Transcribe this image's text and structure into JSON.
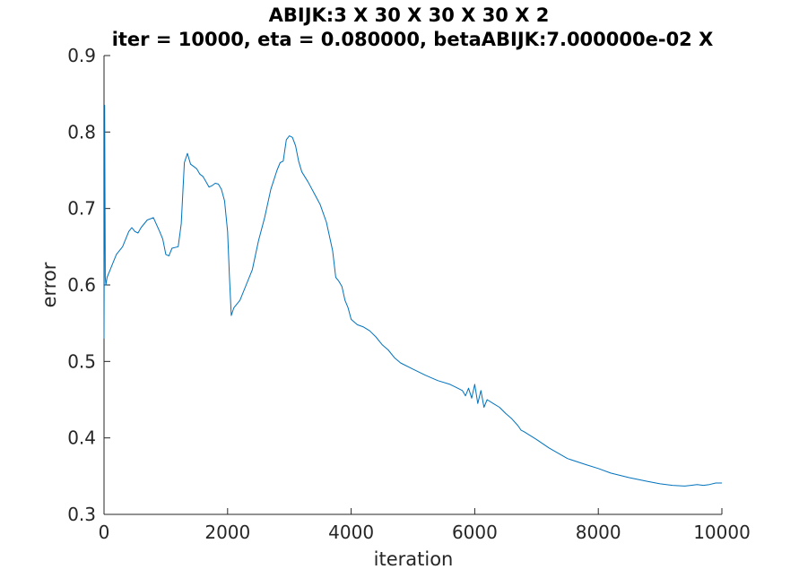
{
  "chart_data": {
    "type": "line",
    "title": "ABIJK:3 X 30 X 30 X 30 X 2",
    "subtitle": "iter = 10000, eta = 0.080000, betaABIJK:7.000000e-02 X",
    "xlabel": "iteration",
    "ylabel": "error",
    "xlim": [
      0,
      10000
    ],
    "ylim": [
      0.3,
      0.9
    ],
    "xticks": [
      0,
      2000,
      4000,
      6000,
      8000,
      10000
    ],
    "xtick_labels": [
      "0",
      "2000",
      "4000",
      "6000",
      "8000",
      "10000"
    ],
    "yticks": [
      0.3,
      0.4,
      0.5,
      0.6,
      0.7,
      0.8,
      0.9
    ],
    "ytick_labels": [
      "0.3",
      "0.4",
      "0.5",
      "0.6",
      "0.7",
      "0.8",
      "0.9"
    ],
    "grid": false,
    "series_color": "#0072bd",
    "x": [
      0,
      10,
      20,
      30,
      50,
      100,
      200,
      300,
      400,
      450,
      500,
      550,
      600,
      700,
      800,
      900,
      950,
      1000,
      1050,
      1100,
      1200,
      1250,
      1300,
      1350,
      1400,
      1450,
      1500,
      1550,
      1600,
      1650,
      1700,
      1750,
      1800,
      1850,
      1900,
      1950,
      2000,
      2030,
      2060,
      2100,
      2200,
      2300,
      2400,
      2500,
      2600,
      2700,
      2800,
      2850,
      2900,
      2950,
      3000,
      3050,
      3100,
      3150,
      3200,
      3300,
      3400,
      3500,
      3600,
      3700,
      3750,
      3800,
      3850,
      3900,
      3950,
      4000,
      4100,
      4200,
      4300,
      4400,
      4500,
      4600,
      4700,
      4800,
      5000,
      5200,
      5400,
      5600,
      5700,
      5800,
      5850,
      5900,
      5950,
      6000,
      6050,
      6100,
      6150,
      6200,
      6300,
      6400,
      6500,
      6600,
      6700,
      6750,
      6800,
      7000,
      7200,
      7500,
      7800,
      8000,
      8200,
      8500,
      8800,
      9000,
      9200,
      9400,
      9500,
      9600,
      9700,
      9800,
      9900,
      10000
    ],
    "y": [
      0.53,
      0.835,
      0.61,
      0.6,
      0.61,
      0.62,
      0.64,
      0.65,
      0.67,
      0.675,
      0.67,
      0.668,
      0.675,
      0.685,
      0.688,
      0.67,
      0.66,
      0.64,
      0.638,
      0.648,
      0.65,
      0.68,
      0.76,
      0.772,
      0.758,
      0.755,
      0.752,
      0.745,
      0.742,
      0.735,
      0.728,
      0.73,
      0.733,
      0.732,
      0.725,
      0.71,
      0.67,
      0.61,
      0.56,
      0.57,
      0.58,
      0.6,
      0.62,
      0.658,
      0.688,
      0.725,
      0.75,
      0.76,
      0.762,
      0.79,
      0.795,
      0.793,
      0.782,
      0.762,
      0.748,
      0.735,
      0.72,
      0.705,
      0.682,
      0.645,
      0.61,
      0.605,
      0.598,
      0.58,
      0.57,
      0.555,
      0.548,
      0.545,
      0.54,
      0.532,
      0.522,
      0.515,
      0.505,
      0.498,
      0.49,
      0.482,
      0.475,
      0.47,
      0.466,
      0.462,
      0.455,
      0.465,
      0.452,
      0.47,
      0.445,
      0.462,
      0.44,
      0.45,
      0.445,
      0.44,
      0.432,
      0.425,
      0.416,
      0.41,
      0.408,
      0.398,
      0.387,
      0.373,
      0.365,
      0.36,
      0.354,
      0.348,
      0.343,
      0.34,
      0.338,
      0.337,
      0.338,
      0.339,
      0.338,
      0.339,
      0.341,
      0.341
    ]
  }
}
